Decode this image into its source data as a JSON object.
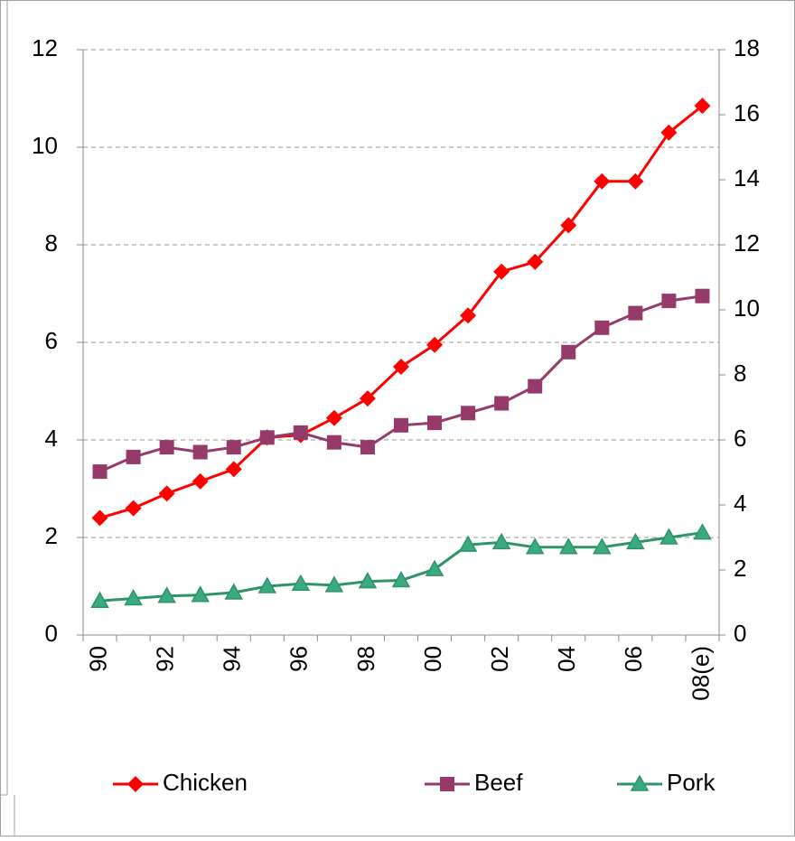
{
  "chart_data": {
    "type": "line",
    "categories": [
      "90",
      null,
      "92",
      null,
      "94",
      null,
      "96",
      null,
      "98",
      null,
      "00",
      null,
      "02",
      null,
      "04",
      null,
      "06",
      null,
      "08(e)"
    ],
    "series": [
      {
        "name": "Chicken",
        "color": "#ff0000",
        "marker": "diamond",
        "values": [
          2.4,
          2.6,
          2.9,
          3.15,
          3.4,
          4.05,
          4.1,
          4.45,
          4.85,
          5.5,
          5.95,
          6.55,
          7.45,
          7.65,
          8.4,
          9.3,
          9.3,
          10.3,
          10.85
        ]
      },
      {
        "name": "Beef",
        "color": "#953a6b",
        "marker": "square",
        "values": [
          3.35,
          3.65,
          3.85,
          3.75,
          3.85,
          4.05,
          4.15,
          3.95,
          3.85,
          4.3,
          4.35,
          4.55,
          4.75,
          5.1,
          5.8,
          6.3,
          6.6,
          6.85,
          6.95
        ]
      },
      {
        "name": "Pork",
        "color": "#2e9468",
        "marker": "triangle",
        "values": [
          0.7,
          0.75,
          0.8,
          0.82,
          0.87,
          1.0,
          1.05,
          1.02,
          1.1,
          1.12,
          1.35,
          1.85,
          1.9,
          1.8,
          1.8,
          1.8,
          1.9,
          2.0,
          2.1
        ]
      }
    ],
    "ylim": [
      0,
      12
    ],
    "yticks": [
      0,
      2,
      4,
      6,
      8,
      10,
      12
    ],
    "y2lim": [
      0,
      18
    ],
    "y2ticks": [
      0,
      2,
      4,
      6,
      8,
      10,
      12,
      14,
      16,
      18
    ],
    "grid": true,
    "legend": "bottom"
  }
}
